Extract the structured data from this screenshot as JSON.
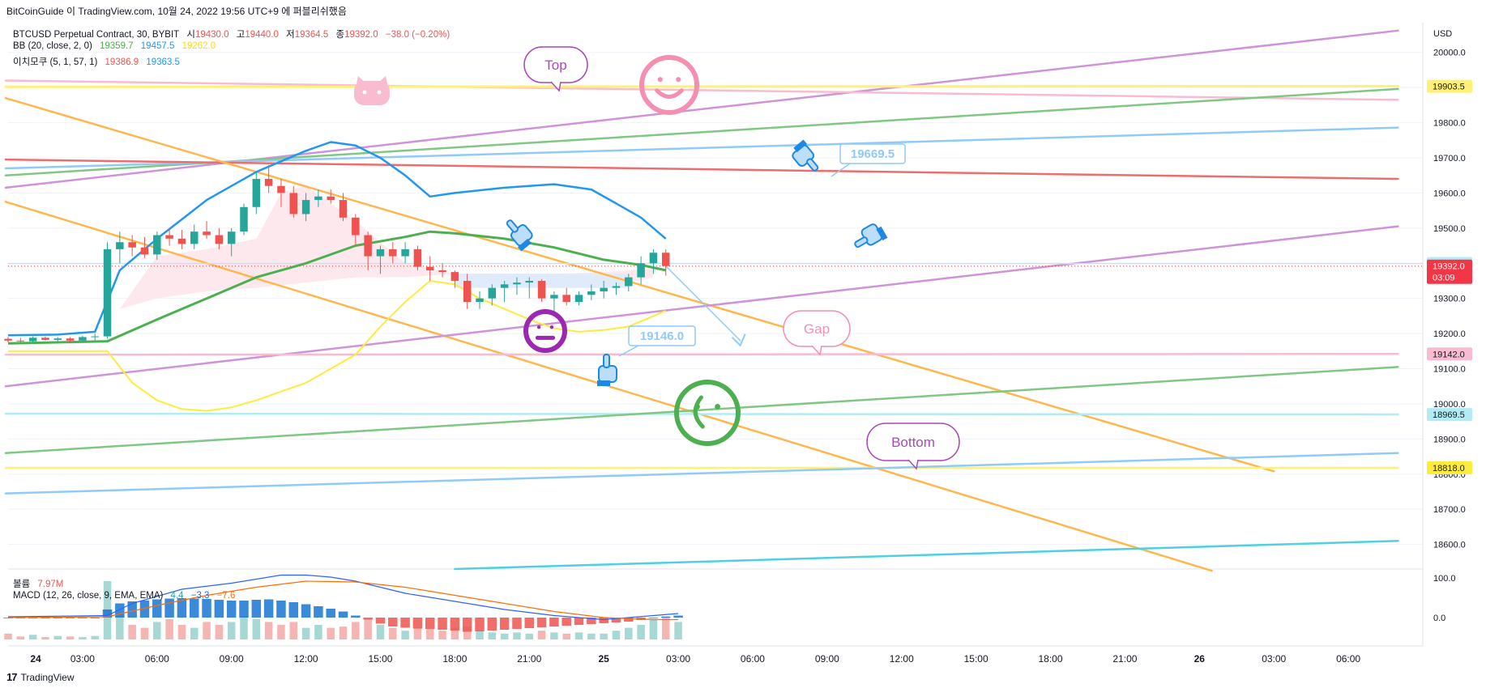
{
  "header": {
    "caption": "BitCoinGuide 이 TradingView.com, 10월 24, 2022 19:56 UTC+9 에 퍼블리쉬했음"
  },
  "footer": {
    "brand": "TradingView",
    "logo": "17"
  },
  "legend": {
    "symbol": "BTCUSD Perpetual Contract, 30, BYBIT",
    "open_label": "시",
    "open": "19430.0",
    "high_label": "고",
    "high": "19440.0",
    "low_label": "저",
    "low": "19364.5",
    "close_label": "종",
    "close": "19392.0",
    "change": "−38.0 (−0.20%)",
    "bb_label": "BB (20, close, 2, 0)",
    "bb_basis": "19359.7",
    "bb_upper": "19457.5",
    "bb_lower": "19262.0",
    "ichimoku_label": "이치모쿠 (5, 1, 57, 1)",
    "ichi_a": "19386.9",
    "ichi_b": "19363.5",
    "volume_label": "볼륨",
    "volume": "7.97M",
    "macd_label": "MACD (12, 26, close, 9, EMA, EMA)",
    "macd_hist": "4.4",
    "macd_line": "−3.3",
    "macd_signal": "−7.6"
  },
  "colors": {
    "up": "#26a69a",
    "down": "#ef5350",
    "bb_upper": "#2196f3",
    "bb_lower": "#ffeb3b",
    "bb_basis": "#4caf50",
    "orange": "#ffb74d",
    "purple": "#ce93d8",
    "pink": "#f48fb1",
    "blue": "#90caf9",
    "red": "#ef6c6c",
    "green": "#81c784",
    "cyan": "#4dd0e1",
    "yellow": "#fff176"
  },
  "chart_data": {
    "type": "line",
    "currency": "USD",
    "y_ticks": [
      "20000.0",
      "19900.0",
      "19800.0",
      "19700.0",
      "19600.0",
      "19500.0",
      "19400.0",
      "19300.0",
      "19200.0",
      "19100.0",
      "19000.0",
      "18900.0",
      "18800.0",
      "18700.0",
      "18600.0"
    ],
    "y_range": [
      18530,
      20080
    ],
    "x_ticks": [
      "24",
      "03:00",
      "06:00",
      "09:00",
      "12:00",
      "15:00",
      "18:00",
      "21:00",
      "25",
      "03:00",
      "06:00",
      "09:00",
      "12:00",
      "15:00",
      "18:00",
      "21:00",
      "26",
      "03:00",
      "06:00"
    ],
    "x_range_hours": [
      0,
      57
    ],
    "price_tags": [
      {
        "text": "19903.5",
        "price": 19903.5,
        "bg": "#fff176",
        "fg": "#131722"
      },
      {
        "text": "19399.0",
        "price": 19399.0,
        "bg": "#b2ebf2",
        "fg": "#131722"
      },
      {
        "text": "19392.0",
        "sub": "03:09",
        "price": 19392.0,
        "bg": "#f23645",
        "fg": "#ffffff"
      },
      {
        "text": "19142.0",
        "price": 19142.0,
        "bg": "#f8bbd0",
        "fg": "#131722"
      },
      {
        "text": "18969.5",
        "price": 18969.5,
        "bg": "#b2ebf2",
        "fg": "#131722"
      },
      {
        "text": "18818.0",
        "price": 18818.0,
        "bg": "#ffeb3b",
        "fg": "#131722"
      }
    ],
    "annotations": {
      "top": "Top",
      "gap": "Gap",
      "bottom": "Bottom",
      "note1": "19669.5",
      "note2": "19146.0"
    },
    "macd_ticks": [
      "100.0",
      "0.0"
    ],
    "candles": [
      [
        0.0,
        19185,
        19190,
        19175,
        19180
      ],
      [
        0.5,
        19180,
        19188,
        19172,
        19178
      ],
      [
        1.0,
        19178,
        19192,
        19176,
        19188
      ],
      [
        1.5,
        19188,
        19192,
        19180,
        19182
      ],
      [
        2.0,
        19182,
        19190,
        19174,
        19186
      ],
      [
        2.5,
        19186,
        19190,
        19176,
        19180
      ],
      [
        3.0,
        19180,
        19194,
        19176,
        19190
      ],
      [
        3.5,
        19190,
        19200,
        19180,
        19192
      ],
      [
        4.0,
        19192,
        19460,
        19185,
        19440
      ],
      [
        4.5,
        19440,
        19490,
        19400,
        19460
      ],
      [
        5.0,
        19460,
        19480,
        19420,
        19445
      ],
      [
        5.5,
        19445,
        19475,
        19415,
        19425
      ],
      [
        6.0,
        19425,
        19490,
        19410,
        19480
      ],
      [
        6.5,
        19480,
        19500,
        19450,
        19470
      ],
      [
        7.0,
        19470,
        19495,
        19440,
        19455
      ],
      [
        7.5,
        19455,
        19510,
        19440,
        19490
      ],
      [
        8.0,
        19490,
        19520,
        19470,
        19480
      ],
      [
        8.5,
        19480,
        19500,
        19440,
        19455
      ],
      [
        9.0,
        19455,
        19500,
        19420,
        19490
      ],
      [
        9.5,
        19490,
        19570,
        19480,
        19560
      ],
      [
        10.0,
        19560,
        19660,
        19540,
        19640
      ],
      [
        10.5,
        19640,
        19680,
        19600,
        19620
      ],
      [
        11.0,
        19620,
        19640,
        19560,
        19600
      ],
      [
        11.5,
        19600,
        19620,
        19530,
        19540
      ],
      [
        12.0,
        19540,
        19600,
        19520,
        19580
      ],
      [
        12.5,
        19580,
        19610,
        19560,
        19590
      ],
      [
        13.0,
        19590,
        19610,
        19570,
        19580
      ],
      [
        13.5,
        19580,
        19600,
        19520,
        19530
      ],
      [
        14.0,
        19530,
        19540,
        19450,
        19480
      ],
      [
        14.5,
        19480,
        19490,
        19380,
        19420
      ],
      [
        15.0,
        19420,
        19450,
        19370,
        19440
      ],
      [
        15.5,
        19440,
        19460,
        19400,
        19420
      ],
      [
        16.0,
        19420,
        19460,
        19400,
        19440
      ],
      [
        16.5,
        19440,
        19450,
        19380,
        19390
      ],
      [
        17.0,
        19390,
        19420,
        19350,
        19380
      ],
      [
        17.5,
        19380,
        19400,
        19360,
        19375
      ],
      [
        18.0,
        19375,
        19380,
        19330,
        19350
      ],
      [
        18.5,
        19350,
        19370,
        19270,
        19290
      ],
      [
        19.0,
        19290,
        19320,
        19270,
        19300
      ],
      [
        19.5,
        19300,
        19340,
        19280,
        19330
      ],
      [
        20.0,
        19330,
        19350,
        19290,
        19340
      ],
      [
        20.5,
        19340,
        19360,
        19310,
        19345
      ],
      [
        21.0,
        19345,
        19360,
        19300,
        19350
      ],
      [
        21.5,
        19350,
        19355,
        19290,
        19300
      ],
      [
        22.0,
        19300,
        19320,
        19250,
        19310
      ],
      [
        22.5,
        19310,
        19330,
        19280,
        19290
      ],
      [
        23.0,
        19290,
        19320,
        19280,
        19310
      ],
      [
        23.5,
        19310,
        19340,
        19295,
        19320
      ],
      [
        24.0,
        19320,
        19350,
        19300,
        19330
      ],
      [
        24.5,
        19330,
        19345,
        19310,
        19335
      ],
      [
        25.0,
        19335,
        19370,
        19320,
        19360
      ],
      [
        25.5,
        19360,
        19420,
        19340,
        19400
      ],
      [
        26.0,
        19400,
        19440,
        19370,
        19430
      ],
      [
        26.5,
        19430,
        19440,
        19364.5,
        19392
      ]
    ],
    "series": [
      {
        "name": "BB upper",
        "color": "#2196f3",
        "width": 2.5,
        "points": [
          [
            0,
            19195
          ],
          [
            2,
            19197
          ],
          [
            3.5,
            19205
          ],
          [
            4.5,
            19380
          ],
          [
            6,
            19470
          ],
          [
            8,
            19580
          ],
          [
            10,
            19660
          ],
          [
            11,
            19690
          ],
          [
            12,
            19720
          ],
          [
            13,
            19745
          ],
          [
            14,
            19735
          ],
          [
            15,
            19700
          ],
          [
            16,
            19650
          ],
          [
            17,
            19590
          ],
          [
            18,
            19600
          ],
          [
            20,
            19615
          ],
          [
            22,
            19625
          ],
          [
            23.5,
            19610
          ],
          [
            24.5,
            19570
          ],
          [
            25.5,
            19530
          ],
          [
            26.5,
            19470
          ]
        ]
      },
      {
        "name": "BB basis",
        "color": "#4caf50",
        "width": 3,
        "points": [
          [
            0,
            19172
          ],
          [
            4,
            19178
          ],
          [
            6,
            19240
          ],
          [
            8,
            19300
          ],
          [
            10,
            19360
          ],
          [
            12,
            19400
          ],
          [
            14,
            19450
          ],
          [
            16,
            19475
          ],
          [
            17,
            19490
          ],
          [
            18,
            19485
          ],
          [
            20,
            19470
          ],
          [
            22,
            19445
          ],
          [
            24,
            19410
          ],
          [
            25.5,
            19395
          ],
          [
            26.5,
            19380
          ]
        ]
      },
      {
        "name": "BB lower",
        "color": "#ffeb3b",
        "width": 2,
        "points": [
          [
            0,
            19150
          ],
          [
            4,
            19150
          ],
          [
            5,
            19060
          ],
          [
            6,
            19010
          ],
          [
            7,
            18985
          ],
          [
            8,
            18980
          ],
          [
            9,
            18990
          ],
          [
            10,
            19010
          ],
          [
            12,
            19060
          ],
          [
            14,
            19140
          ],
          [
            15,
            19220
          ],
          [
            16,
            19290
          ],
          [
            17,
            19350
          ],
          [
            18,
            19340
          ],
          [
            19,
            19300
          ],
          [
            20,
            19270
          ],
          [
            21,
            19240
          ],
          [
            22,
            19215
          ],
          [
            23,
            19205
          ],
          [
            24,
            19210
          ],
          [
            25,
            19220
          ],
          [
            26,
            19250
          ],
          [
            26.5,
            19265
          ]
        ]
      },
      {
        "name": "Cloud A",
        "color": "#f8bbd0",
        "width": 1,
        "points": [
          [
            4.5,
            19270
          ],
          [
            6,
            19420
          ],
          [
            8,
            19440
          ],
          [
            10,
            19470
          ],
          [
            11,
            19600
          ],
          [
            12,
            19620
          ],
          [
            14,
            19520
          ],
          [
            16,
            19400
          ],
          [
            18,
            19370
          ],
          [
            20,
            19340
          ],
          [
            22,
            19330
          ],
          [
            24,
            19330
          ],
          [
            26,
            19360
          ]
        ]
      },
      {
        "name": "Cloud B",
        "color": "#bbdefb",
        "width": 1,
        "points": [
          [
            4.5,
            19270
          ],
          [
            6,
            19300
          ],
          [
            8,
            19320
          ],
          [
            10,
            19330
          ],
          [
            12,
            19345
          ],
          [
            14,
            19360
          ],
          [
            16,
            19360
          ],
          [
            18,
            19370
          ],
          [
            20,
            19370
          ],
          [
            22,
            19370
          ],
          [
            24,
            19375
          ],
          [
            26,
            19385
          ]
        ]
      }
    ],
    "trendlines": [
      {
        "color": "#ce93d8",
        "width": 2.5,
        "from": [
          -0.1,
          19615
        ],
        "to": [
          56,
          20062
        ]
      },
      {
        "color": "#f8bbd0",
        "width": 2.5,
        "from": [
          -0.1,
          19920
        ],
        "to": [
          56,
          19865
        ]
      },
      {
        "color": "#fff176",
        "width": 3,
        "from": [
          -0.1,
          19902
        ],
        "to": [
          56,
          19904
        ]
      },
      {
        "color": "#81c784",
        "width": 2.5,
        "from": [
          -0.1,
          19650
        ],
        "to": [
          56,
          19896
        ]
      },
      {
        "color": "#90caf9",
        "width": 2.5,
        "from": [
          -0.1,
          19670
        ],
        "to": [
          56,
          19786
        ]
      },
      {
        "color": "#ef6c6c",
        "width": 2.5,
        "from": [
          -0.1,
          19695
        ],
        "to": [
          56,
          19640
        ]
      },
      {
        "color": "#ffb74d",
        "width": 2.5,
        "from": [
          -0.1,
          19870
        ],
        "to": [
          51,
          18808
        ]
      },
      {
        "color": "#ffb74d",
        "width": 2.5,
        "from": [
          -0.1,
          19575
        ],
        "to": [
          48.5,
          18525
        ]
      },
      {
        "color": "#ce93d8",
        "width": 2.5,
        "from": [
          -0.1,
          19050
        ],
        "to": [
          56,
          19505
        ]
      },
      {
        "color": "#f8bbd0",
        "width": 2.5,
        "from": [
          -0.1,
          19140
        ],
        "to": [
          56,
          19142
        ]
      },
      {
        "color": "#b2ebf2",
        "width": 2.5,
        "from": [
          -0.1,
          18972
        ],
        "to": [
          56,
          18970
        ]
      },
      {
        "color": "#81c784",
        "width": 2.5,
        "from": [
          -0.1,
          18860
        ],
        "to": [
          56,
          19105
        ]
      },
      {
        "color": "#fff176",
        "width": 2.5,
        "from": [
          -0.1,
          18818
        ],
        "to": [
          56,
          18818
        ]
      },
      {
        "color": "#90caf9",
        "width": 2.5,
        "from": [
          -0.1,
          18745
        ],
        "to": [
          56,
          18860
        ]
      },
      {
        "color": "#4dd0e1",
        "width": 2.5,
        "from": [
          18,
          18530
        ],
        "to": [
          56,
          18610
        ]
      },
      {
        "color": "#90caf9",
        "width": 1.5,
        "from": [
          26.5,
          19392
        ],
        "to": [
          29.5,
          19180
        ]
      }
    ],
    "volume": [
      0.1,
      0.05,
      0.08,
      0.04,
      0.06,
      0.05,
      0.04,
      0.06,
      1.0,
      0.45,
      0.25,
      0.2,
      0.3,
      0.35,
      0.25,
      0.2,
      0.3,
      0.25,
      0.3,
      0.4,
      0.35,
      0.3,
      0.25,
      0.3,
      0.2,
      0.25,
      0.2,
      0.22,
      0.3,
      0.35,
      0.25,
      0.2,
      0.15,
      0.2,
      0.18,
      0.15,
      0.2,
      0.22,
      0.15,
      0.12,
      0.1,
      0.12,
      0.1,
      0.15,
      0.12,
      0.1,
      0.12,
      0.1,
      0.1,
      0.15,
      0.2,
      0.25,
      0.35,
      0.4,
      0.3
    ],
    "macd_hist": [
      -0.02,
      -0.02,
      -0.02,
      -0.02,
      -0.02,
      -0.02,
      -0.02,
      -0.02,
      0.2,
      0.35,
      0.4,
      0.42,
      0.45,
      0.47,
      0.48,
      0.47,
      0.46,
      0.44,
      0.42,
      0.42,
      0.44,
      0.45,
      0.42,
      0.38,
      0.33,
      0.28,
      0.22,
      0.15,
      0.05,
      -0.05,
      -0.15,
      -0.22,
      -0.25,
      -0.27,
      -0.28,
      -0.3,
      -0.32,
      -0.35,
      -0.34,
      -0.32,
      -0.3,
      -0.28,
      -0.26,
      -0.24,
      -0.22,
      -0.2,
      -0.18,
      -0.16,
      -0.14,
      -0.12,
      -0.1,
      -0.06,
      -0.02,
      0.02,
      0.05
    ],
    "macd_line": [
      [
        0,
        0.02
      ],
      [
        4,
        0.05
      ],
      [
        5,
        0.35
      ],
      [
        7,
        0.7
      ],
      [
        9,
        0.85
      ],
      [
        11,
        1.05
      ],
      [
        12,
        1.05
      ],
      [
        13,
        1.0
      ],
      [
        14,
        0.9
      ],
      [
        15,
        0.75
      ],
      [
        16,
        0.6
      ],
      [
        18,
        0.4
      ],
      [
        20,
        0.2
      ],
      [
        22,
        0.05
      ],
      [
        24,
        -0.05
      ],
      [
        26,
        0.05
      ],
      [
        27,
        0.1
      ]
    ],
    "macd_signal": [
      [
        0,
        0.0
      ],
      [
        4,
        0.02
      ],
      [
        6,
        0.3
      ],
      [
        8,
        0.55
      ],
      [
        10,
        0.75
      ],
      [
        12,
        0.9
      ],
      [
        14,
        0.88
      ],
      [
        16,
        0.75
      ],
      [
        18,
        0.55
      ],
      [
        20,
        0.35
      ],
      [
        22,
        0.15
      ],
      [
        24,
        0.0
      ],
      [
        26,
        -0.05
      ],
      [
        27,
        -0.05
      ]
    ]
  }
}
